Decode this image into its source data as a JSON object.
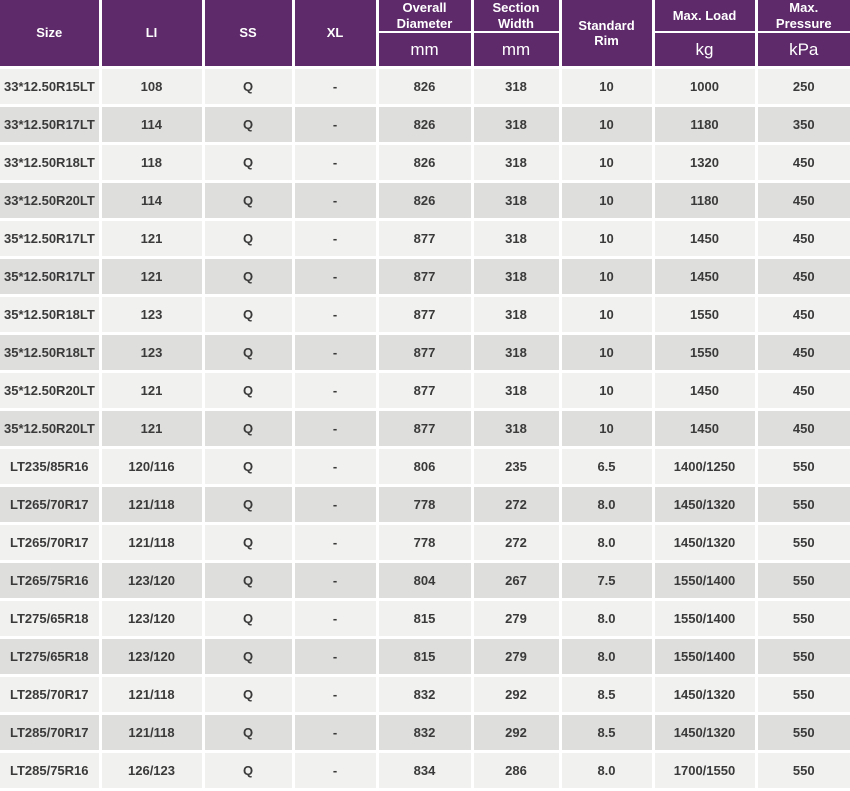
{
  "table": {
    "columns": [
      {
        "key": "size",
        "label": "Size",
        "unit": null
      },
      {
        "key": "li",
        "label": "LI",
        "unit": null
      },
      {
        "key": "ss",
        "label": "SS",
        "unit": null
      },
      {
        "key": "xl",
        "label": "XL",
        "unit": null
      },
      {
        "key": "overall-diameter",
        "label": "Overall Diameter",
        "unit": "mm"
      },
      {
        "key": "section-width",
        "label": "Section Width",
        "unit": "mm"
      },
      {
        "key": "standard-rim",
        "label": "Standard Rim",
        "unit": null
      },
      {
        "key": "max-load",
        "label": "Max. Load",
        "unit": "kg"
      },
      {
        "key": "max-pressure",
        "label": "Max. Pressure",
        "unit": "kPa"
      }
    ],
    "rows": [
      [
        "33*12.50R15LT",
        "108",
        "Q",
        "-",
        "826",
        "318",
        "10",
        "1000",
        "250"
      ],
      [
        "33*12.50R17LT",
        "114",
        "Q",
        "-",
        "826",
        "318",
        "10",
        "1180",
        "350"
      ],
      [
        "33*12.50R18LT",
        "118",
        "Q",
        "-",
        "826",
        "318",
        "10",
        "1320",
        "450"
      ],
      [
        "33*12.50R20LT",
        "114",
        "Q",
        "-",
        "826",
        "318",
        "10",
        "1180",
        "450"
      ],
      [
        "35*12.50R17LT",
        "121",
        "Q",
        "-",
        "877",
        "318",
        "10",
        "1450",
        "450"
      ],
      [
        "35*12.50R17LT",
        "121",
        "Q",
        "-",
        "877",
        "318",
        "10",
        "1450",
        "450"
      ],
      [
        "35*12.50R18LT",
        "123",
        "Q",
        "-",
        "877",
        "318",
        "10",
        "1550",
        "450"
      ],
      [
        "35*12.50R18LT",
        "123",
        "Q",
        "-",
        "877",
        "318",
        "10",
        "1550",
        "450"
      ],
      [
        "35*12.50R20LT",
        "121",
        "Q",
        "-",
        "877",
        "318",
        "10",
        "1450",
        "450"
      ],
      [
        "35*12.50R20LT",
        "121",
        "Q",
        "-",
        "877",
        "318",
        "10",
        "1450",
        "450"
      ],
      [
        "LT235/85R16",
        "120/116",
        "Q",
        "-",
        "806",
        "235",
        "6.5",
        "1400/1250",
        "550"
      ],
      [
        "LT265/70R17",
        "121/118",
        "Q",
        "-",
        "778",
        "272",
        "8.0",
        "1450/1320",
        "550"
      ],
      [
        "LT265/70R17",
        "121/118",
        "Q",
        "-",
        "778",
        "272",
        "8.0",
        "1450/1320",
        "550"
      ],
      [
        "LT265/75R16",
        "123/120",
        "Q",
        "-",
        "804",
        "267",
        "7.5",
        "1550/1400",
        "550"
      ],
      [
        "LT275/65R18",
        "123/120",
        "Q",
        "-",
        "815",
        "279",
        "8.0",
        "1550/1400",
        "550"
      ],
      [
        "LT275/65R18",
        "123/120",
        "Q",
        "-",
        "815",
        "279",
        "8.0",
        "1550/1400",
        "550"
      ],
      [
        "LT285/70R17",
        "121/118",
        "Q",
        "-",
        "832",
        "292",
        "8.5",
        "1450/1320",
        "550"
      ],
      [
        "LT285/70R17",
        "121/118",
        "Q",
        "-",
        "832",
        "292",
        "8.5",
        "1450/1320",
        "550"
      ],
      [
        "LT285/75R16",
        "126/123",
        "Q",
        "-",
        "834",
        "286",
        "8.0",
        "1700/1550",
        "550"
      ]
    ]
  },
  "colors": {
    "header_bg": "#5E2A6A",
    "header_text": "#FFFFFF",
    "row_light": "#F1F1EF",
    "row_dark": "#DEDEDC",
    "cell_text": "#3A3A3A",
    "divider": "#FFFFFF"
  }
}
